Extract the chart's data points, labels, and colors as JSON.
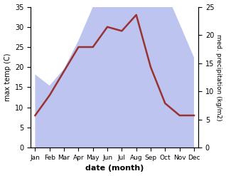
{
  "months": [
    "Jan",
    "Feb",
    "Mar",
    "Apr",
    "May",
    "Jun",
    "Jul",
    "Aug",
    "Sep",
    "Oct",
    "Nov",
    "Dec"
  ],
  "max_temp": [
    8,
    13,
    19,
    25,
    25,
    30,
    29,
    33,
    20,
    11,
    8,
    8
  ],
  "precipitation": [
    13,
    11,
    14,
    19,
    25,
    25,
    33,
    33,
    28,
    28,
    22,
    16
  ],
  "temp_color": "#993333",
  "precip_fill_color": "#bcc4ef",
  "xlabel": "date (month)",
  "ylabel_left": "max temp (C)",
  "ylabel_right": "med. precipitation (kg/m2)",
  "ylim_left": [
    0,
    35
  ],
  "ylim_right": [
    0,
    25
  ],
  "yticks_left": [
    0,
    5,
    10,
    15,
    20,
    25,
    30,
    35
  ],
  "yticks_right": [
    0,
    5,
    10,
    15,
    20,
    25
  ],
  "line_width": 1.8
}
